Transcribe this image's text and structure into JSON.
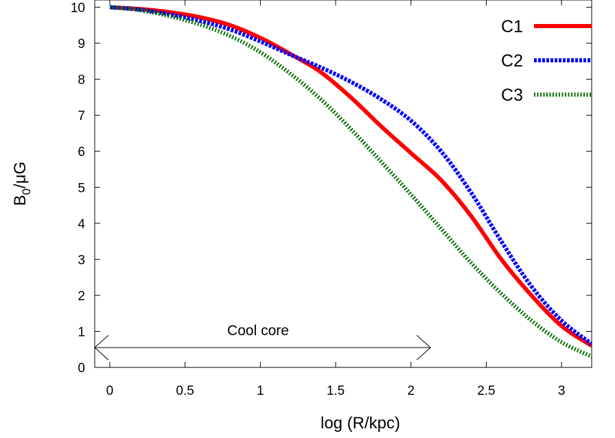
{
  "chart_data": {
    "type": "line",
    "title": "",
    "xlabel": "log (R/kpc)",
    "ylabel": {
      "base": "B",
      "sub": "0",
      "rest": "/μG"
    },
    "xlim": [
      -0.1,
      3.2
    ],
    "ylim": [
      0,
      10.2
    ],
    "xticks": [
      0,
      0.5,
      1,
      1.5,
      2,
      2.5,
      3
    ],
    "xtick_labels": [
      "0",
      "0.5",
      "1",
      "1.5",
      "2",
      "2.5",
      "3"
    ],
    "yticks": [
      0,
      1,
      2,
      3,
      4,
      5,
      6,
      7,
      8,
      9,
      10
    ],
    "ytick_labels": [
      "0",
      "1",
      "2",
      "3",
      "4",
      "5",
      "6",
      "7",
      "8",
      "9",
      "10"
    ],
    "grid": false,
    "legend": {
      "placement": "top-right"
    },
    "series": [
      {
        "name": "C1",
        "color": "#ff0000",
        "style": "solid",
        "x": [
          0,
          0.2,
          0.4,
          0.6,
          0.8,
          1.0,
          1.2,
          1.4,
          1.6,
          1.8,
          2.0,
          2.2,
          2.4,
          2.6,
          2.8,
          3.0,
          3.2
        ],
        "y": [
          10.0,
          9.95,
          9.86,
          9.72,
          9.5,
          9.15,
          8.7,
          8.2,
          7.5,
          6.7,
          5.95,
          5.2,
          4.2,
          3.0,
          2.0,
          1.15,
          0.6
        ]
      },
      {
        "name": "C2",
        "color": "#0000ff",
        "style": "dashed",
        "x": [
          0,
          0.2,
          0.4,
          0.6,
          0.8,
          1.0,
          1.2,
          1.4,
          1.6,
          1.8,
          2.0,
          2.2,
          2.4,
          2.6,
          2.8,
          3.0,
          3.2
        ],
        "y": [
          10.0,
          9.93,
          9.8,
          9.62,
          9.38,
          9.05,
          8.68,
          8.33,
          7.93,
          7.45,
          6.85,
          6.0,
          4.85,
          3.5,
          2.25,
          1.3,
          0.65
        ]
      },
      {
        "name": "C3",
        "color": "#007000",
        "style": "dotted",
        "x": [
          0,
          0.2,
          0.4,
          0.6,
          0.8,
          1.0,
          1.2,
          1.4,
          1.6,
          1.8,
          2.0,
          2.2,
          2.4,
          2.6,
          2.8,
          3.0,
          3.2
        ],
        "y": [
          10.0,
          9.92,
          9.75,
          9.52,
          9.2,
          8.75,
          8.15,
          7.45,
          6.62,
          5.72,
          4.8,
          3.85,
          2.9,
          2.05,
          1.3,
          0.7,
          0.3
        ]
      }
    ],
    "annotations": [
      {
        "text": "Cool core",
        "arrow_from_x": -0.1,
        "arrow_to_x": 2.13,
        "y": 0.55
      }
    ]
  }
}
